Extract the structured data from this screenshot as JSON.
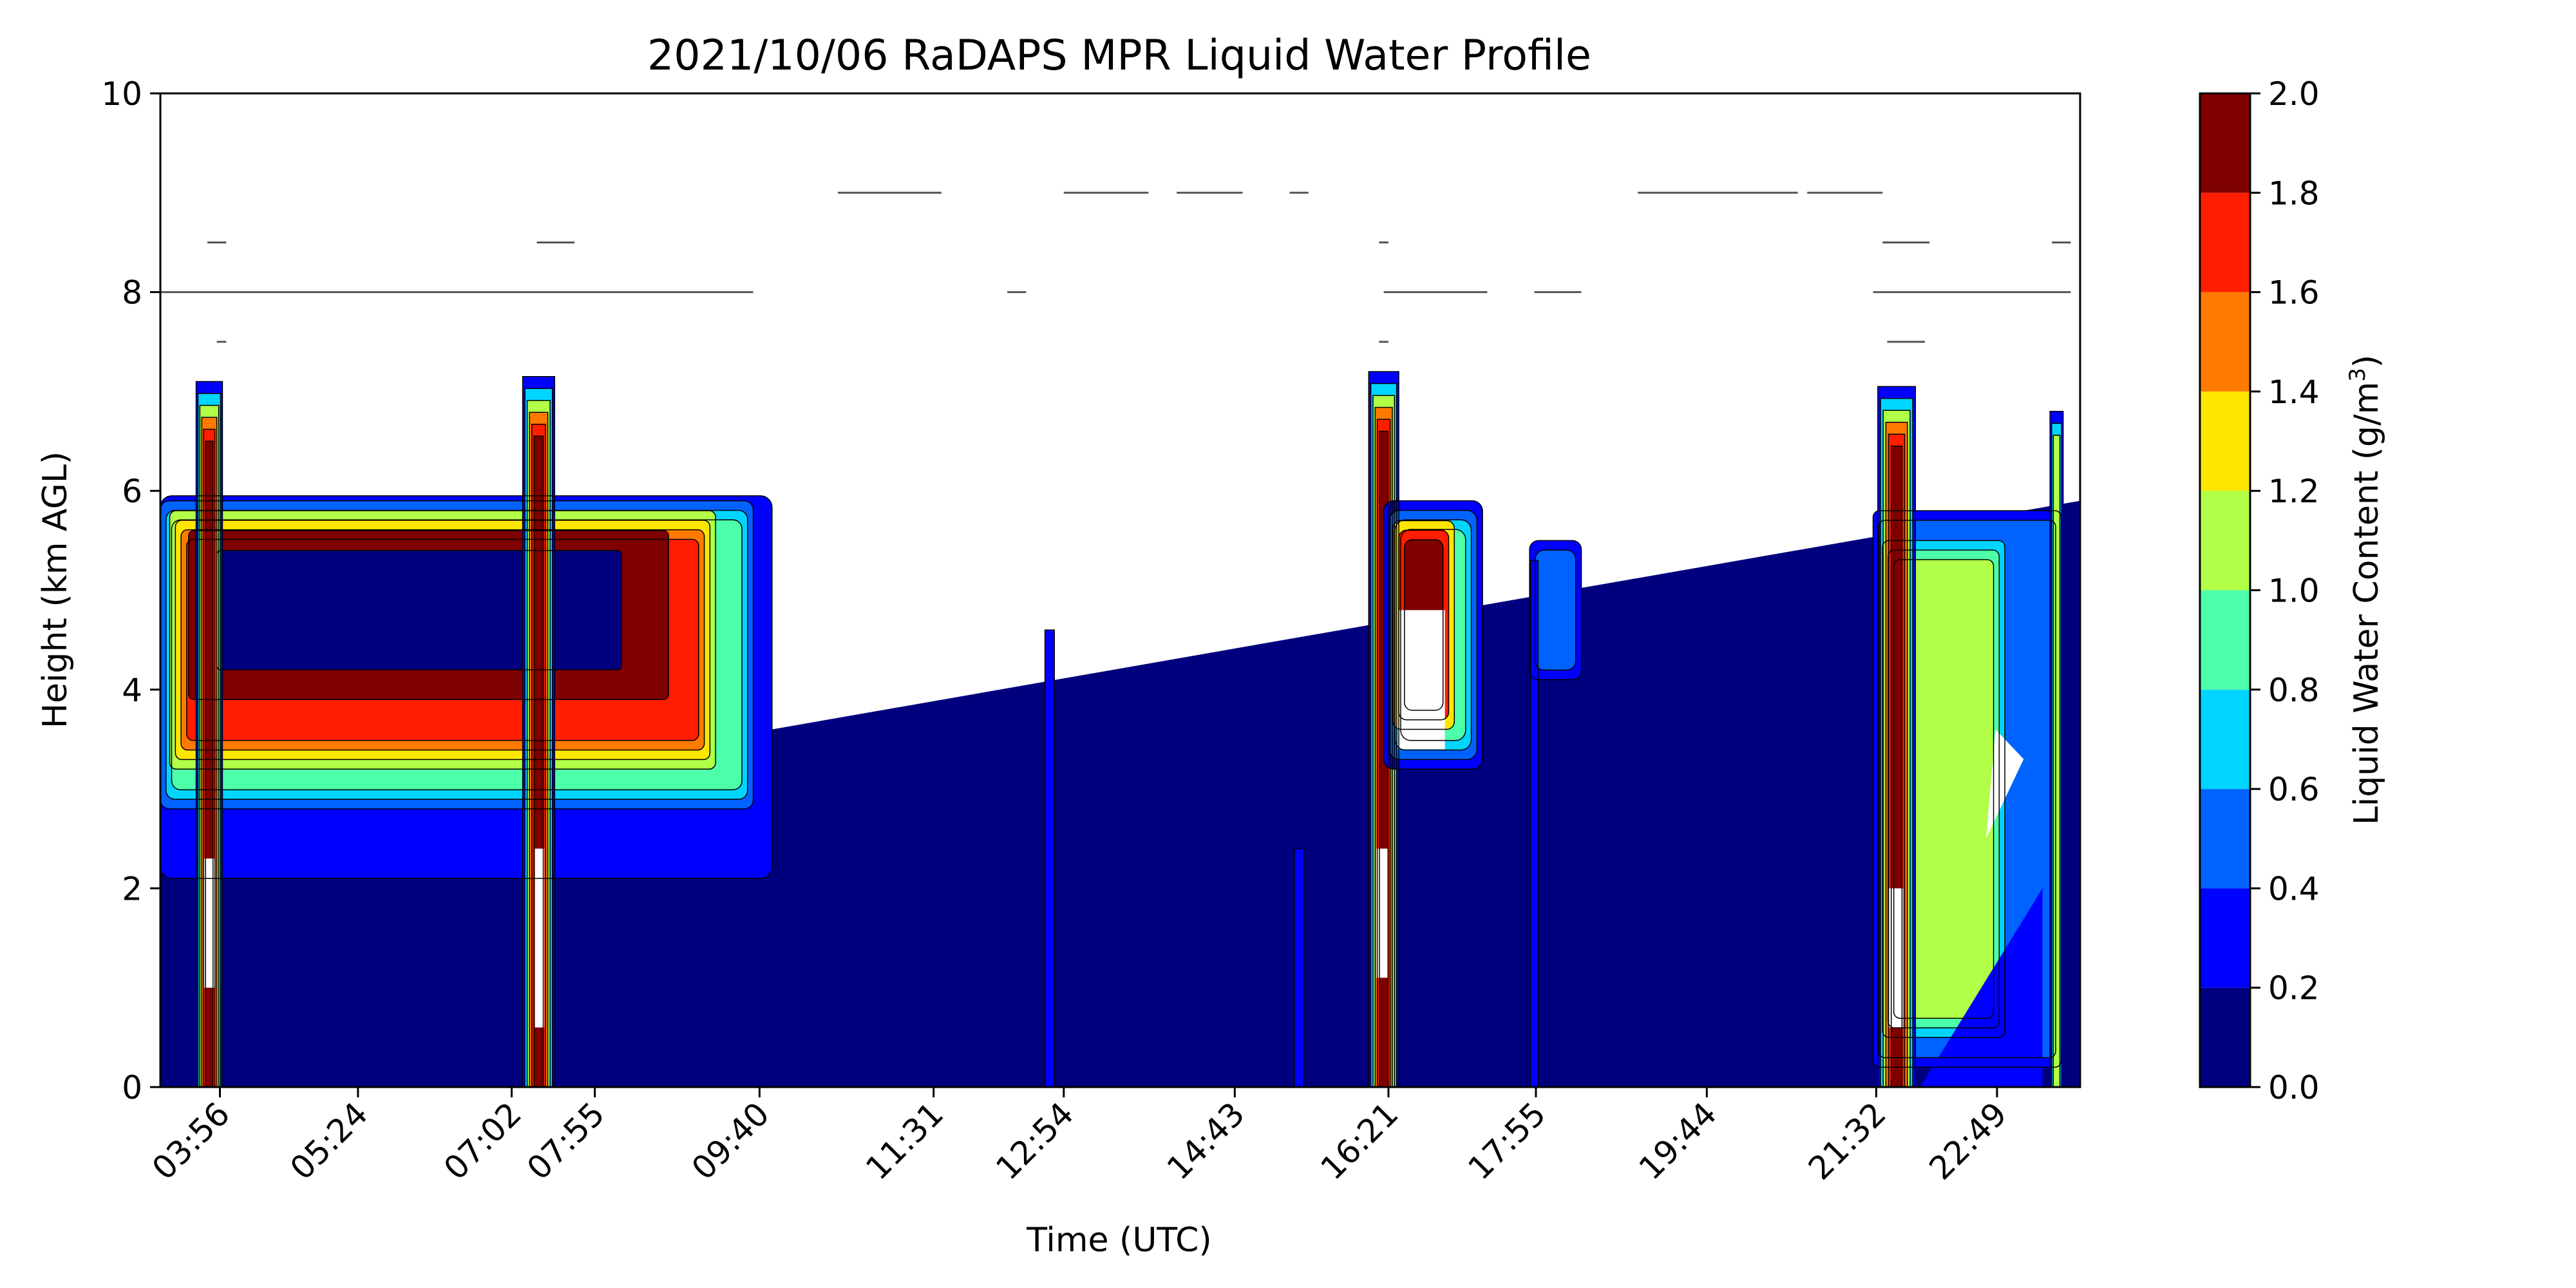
{
  "chart_data": {
    "type": "heatmap",
    "title": "2021/10/06 RaDAPS MPR Liquid Water Profile",
    "xlabel": "Time (UTC)",
    "ylabel": "Height (km AGL)",
    "colorbar_label": "Liquid Water Content (g/m",
    "colorbar_label_sup": "3",
    "colorbar_label_end": ")",
    "xlim": [
      3.3,
      23.7
    ],
    "ylim": [
      0,
      10
    ],
    "x_ticks": [
      {
        "label": "03:56",
        "hours": 3.933
      },
      {
        "label": "05:24",
        "hours": 5.4
      },
      {
        "label": "07:02",
        "hours": 7.033
      },
      {
        "label": "07:55",
        "hours": 7.917
      },
      {
        "label": "09:40",
        "hours": 9.667
      },
      {
        "label": "11:31",
        "hours": 11.517
      },
      {
        "label": "12:54",
        "hours": 12.9
      },
      {
        "label": "14:43",
        "hours": 14.717
      },
      {
        "label": "16:21",
        "hours": 16.35
      },
      {
        "label": "17:55",
        "hours": 17.917
      },
      {
        "label": "19:44",
        "hours": 19.733
      },
      {
        "label": "21:32",
        "hours": 21.533
      },
      {
        "label": "22:49",
        "hours": 22.817
      }
    ],
    "y_ticks": [
      "0",
      "2",
      "4",
      "6",
      "8",
      "10"
    ],
    "y_tick_values": [
      0,
      2,
      4,
      6,
      8,
      10
    ],
    "colorbar_levels": [
      "0.0",
      "0.2",
      "0.4",
      "0.6",
      "0.8",
      "1.0",
      "1.2",
      "1.4",
      "1.6",
      "1.8",
      "2.0"
    ],
    "colorbar_level_values": [
      0,
      0.2,
      0.4,
      0.6,
      0.8,
      1.0,
      1.2,
      1.4,
      1.6,
      1.8,
      2.0
    ],
    "colorbar_colors": [
      "#00007f",
      "#0000ff",
      "#0063ff",
      "#00d5ff",
      "#4effa9",
      "#b1ff46",
      "#ffe600",
      "#ff7a00",
      "#ff1e00",
      "#7f0000"
    ],
    "grid": false
  }
}
